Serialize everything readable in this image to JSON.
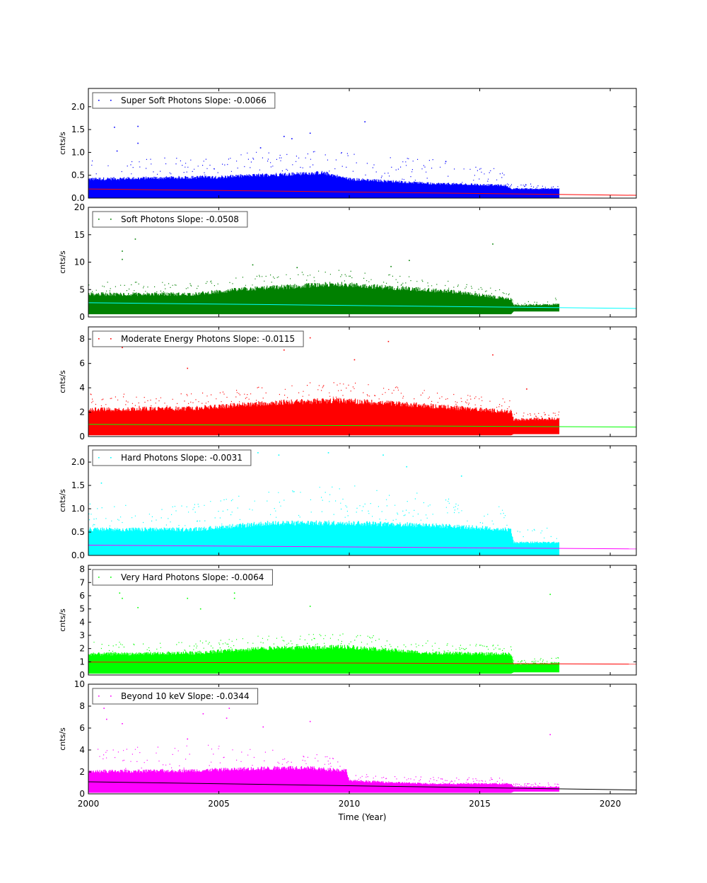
{
  "figure": {
    "xlabel": "Time (Year)",
    "x_ticks": [
      "2000",
      "2005",
      "2010",
      "2015",
      "2020"
    ]
  },
  "chart_data": [
    {
      "type": "scatter",
      "legend": "Super Soft Photons Slope: -0.0066",
      "ylabel": "cnts/s",
      "xlim": [
        2000,
        2021
      ],
      "ylim": [
        0,
        2.4
      ],
      "y_ticks": [
        "0.0",
        "0.5",
        "1.0",
        "1.5",
        "2.0"
      ],
      "y_tick_values": [
        0,
        0.5,
        1.0,
        1.5,
        2.0
      ],
      "legend_placement": "top-left",
      "grid": false,
      "colors": {
        "points": "#0000ff",
        "fit": "#ff0000"
      },
      "fit_line": {
        "x": [
          2000,
          2021
        ],
        "y": [
          0.2,
          0.061
        ],
        "slope": -0.0066
      },
      "data_extent": {
        "x_start": 2000,
        "x_end": 2018.05
      },
      "band": [
        {
          "x": 2000,
          "low": 0.0,
          "high": 0.45,
          "spike": 0.9
        },
        {
          "x": 2005,
          "low": 0.0,
          "high": 0.5,
          "spike": 0.85
        },
        {
          "x": 2007,
          "low": 0.0,
          "high": 0.55,
          "spike": 1.1
        },
        {
          "x": 2009,
          "low": 0.0,
          "high": 0.6,
          "spike": 1.05
        },
        {
          "x": 2010,
          "low": 0.0,
          "high": 0.45,
          "spike": 1.0
        },
        {
          "x": 2013,
          "low": 0.0,
          "high": 0.35,
          "spike": 0.85
        },
        {
          "x": 2016,
          "low": 0.0,
          "high": 0.3,
          "spike": 0.6
        },
        {
          "x": 2016.2,
          "low": 0.0,
          "high": 0.22,
          "spike": 0.3
        },
        {
          "x": 2018.05,
          "low": 0.0,
          "high": 0.22,
          "spike": 0.3
        }
      ],
      "outliers": [
        {
          "x": 2001.0,
          "y": 1.55
        },
        {
          "x": 2001.9,
          "y": 1.57
        },
        {
          "x": 2001.9,
          "y": 1.2
        },
        {
          "x": 2007.5,
          "y": 1.35
        },
        {
          "x": 2007.8,
          "y": 1.3
        },
        {
          "x": 2008.5,
          "y": 1.42
        },
        {
          "x": 2010.6,
          "y": 1.67
        },
        {
          "x": 2001.1,
          "y": 1.03
        },
        {
          "x": 2006.6,
          "y": 1.1
        },
        {
          "x": 2013.7,
          "y": 0.8
        }
      ]
    },
    {
      "type": "scatter",
      "legend": "Soft Photons Slope: -0.0508",
      "ylabel": "cnts/s",
      "xlim": [
        2000,
        2021
      ],
      "ylim": [
        0,
        20
      ],
      "y_ticks": [
        "0",
        "5",
        "10",
        "15",
        "20"
      ],
      "y_tick_values": [
        0,
        5,
        10,
        15,
        20
      ],
      "legend_placement": "top-left",
      "grid": false,
      "colors": {
        "points": "#008000",
        "fit": "#00ffff"
      },
      "fit_line": {
        "x": [
          2000,
          2021
        ],
        "y": [
          2.6,
          1.55
        ],
        "slope": -0.0508
      },
      "data_extent": {
        "x_start": 2000,
        "x_end": 2018.05
      },
      "band": [
        {
          "x": 2000,
          "low": 0.5,
          "high": 4.5,
          "spike": 7
        },
        {
          "x": 2004,
          "low": 0.5,
          "high": 4.5,
          "spike": 6
        },
        {
          "x": 2006,
          "low": 0.5,
          "high": 5.5,
          "spike": 7.5
        },
        {
          "x": 2009.5,
          "low": 0.5,
          "high": 6.5,
          "spike": 8.5
        },
        {
          "x": 2011,
          "low": 0.5,
          "high": 6.0,
          "spike": 8
        },
        {
          "x": 2014,
          "low": 0.5,
          "high": 5.0,
          "spike": 6.5
        },
        {
          "x": 2016.2,
          "low": 0.5,
          "high": 3.5,
          "spike": 4.5
        },
        {
          "x": 2016.3,
          "low": 1.0,
          "high": 2.3,
          "spike": 2.8
        },
        {
          "x": 2018.05,
          "low": 1.0,
          "high": 2.5,
          "spike": 3.5
        }
      ],
      "outliers": [
        {
          "x": 2001.3,
          "y": 12
        },
        {
          "x": 2001.8,
          "y": 14.2
        },
        {
          "x": 2015.5,
          "y": 13.3
        },
        {
          "x": 2001.3,
          "y": 10.5
        },
        {
          "x": 2006.3,
          "y": 9.5
        },
        {
          "x": 2008.0,
          "y": 9.0
        },
        {
          "x": 2011.6,
          "y": 9.2
        },
        {
          "x": 2012.3,
          "y": 10.3
        }
      ]
    },
    {
      "type": "scatter",
      "legend": "Moderate Energy Photons Slope: -0.0115",
      "ylabel": "cnts/s",
      "xlim": [
        2000,
        2021
      ],
      "ylim": [
        0,
        9
      ],
      "y_ticks": [
        "0",
        "2",
        "4",
        "6",
        "8"
      ],
      "y_tick_values": [
        0,
        2,
        4,
        6,
        8
      ],
      "legend_placement": "top-left",
      "grid": false,
      "colors": {
        "points": "#ff0000",
        "fit": "#00ff00"
      },
      "fit_line": {
        "x": [
          2000,
          2021
        ],
        "y": [
          1.0,
          0.78
        ],
        "slope": -0.0115
      },
      "data_extent": {
        "x_start": 2000,
        "x_end": 2018.05
      },
      "band": [
        {
          "x": 2000,
          "low": 0.1,
          "high": 2.4,
          "spike": 3.5
        },
        {
          "x": 2004,
          "low": 0.1,
          "high": 2.5,
          "spike": 3.5
        },
        {
          "x": 2007,
          "low": 0.1,
          "high": 3.0,
          "spike": 4.2
        },
        {
          "x": 2009.5,
          "low": 0.1,
          "high": 3.2,
          "spike": 4.5
        },
        {
          "x": 2012,
          "low": 0.1,
          "high": 2.9,
          "spike": 4.0
        },
        {
          "x": 2016.2,
          "low": 0.1,
          "high": 2.2,
          "spike": 3.0
        },
        {
          "x": 2016.3,
          "low": 0.2,
          "high": 1.5,
          "spike": 1.9
        },
        {
          "x": 2018.05,
          "low": 0.2,
          "high": 1.6,
          "spike": 2.0
        }
      ],
      "outliers": [
        {
          "x": 2001.3,
          "y": 7.3
        },
        {
          "x": 2001.9,
          "y": 7.5
        },
        {
          "x": 2007.5,
          "y": 7.1
        },
        {
          "x": 2008.5,
          "y": 8.1
        },
        {
          "x": 2011.5,
          "y": 7.8
        },
        {
          "x": 2015.5,
          "y": 6.7
        },
        {
          "x": 2003.8,
          "y": 5.6
        },
        {
          "x": 2010.2,
          "y": 6.3
        },
        {
          "x": 2016.8,
          "y": 3.9
        }
      ]
    },
    {
      "type": "scatter",
      "legend": "Hard Photons Slope: -0.0031",
      "ylabel": "cnts/s",
      "xlim": [
        2000,
        2021
      ],
      "ylim": [
        0,
        2.35
      ],
      "y_ticks": [
        "0.0",
        "0.5",
        "1.0",
        "1.5",
        "2.0"
      ],
      "y_tick_values": [
        0,
        0.5,
        1.0,
        1.5,
        2.0
      ],
      "legend_placement": "top-left",
      "grid": false,
      "colors": {
        "points": "#00ffff",
        "fit": "#ff00ff"
      },
      "fit_line": {
        "x": [
          2000,
          2021
        ],
        "y": [
          0.22,
          0.14
        ],
        "slope": -0.0031
      },
      "data_extent": {
        "x_start": 2000,
        "x_end": 2018.05
      },
      "band": [
        {
          "x": 2000,
          "low": 0.0,
          "high": 0.6,
          "spike": 1.1
        },
        {
          "x": 2004,
          "low": 0.0,
          "high": 0.6,
          "spike": 1.1
        },
        {
          "x": 2007,
          "low": 0.0,
          "high": 0.75,
          "spike": 1.4
        },
        {
          "x": 2010,
          "low": 0.0,
          "high": 0.75,
          "spike": 1.5
        },
        {
          "x": 2013,
          "low": 0.0,
          "high": 0.7,
          "spike": 1.3
        },
        {
          "x": 2016.2,
          "low": 0.0,
          "high": 0.6,
          "spike": 1.0
        },
        {
          "x": 2016.3,
          "low": 0.0,
          "high": 0.3,
          "spike": 0.55
        },
        {
          "x": 2018.05,
          "low": 0.0,
          "high": 0.3,
          "spike": 0.6
        }
      ],
      "outliers": [
        {
          "x": 2006.5,
          "y": 2.2
        },
        {
          "x": 2007.3,
          "y": 2.15
        },
        {
          "x": 2009.2,
          "y": 2.2
        },
        {
          "x": 2011.3,
          "y": 2.15
        },
        {
          "x": 2000.5,
          "y": 1.55
        },
        {
          "x": 2002.2,
          "y": 2.05
        },
        {
          "x": 2012.2,
          "y": 1.9
        },
        {
          "x": 2014.3,
          "y": 1.7
        }
      ]
    },
    {
      "type": "scatter",
      "legend": "Very Hard Photons Slope: -0.0064",
      "ylabel": "cnts/s",
      "xlim": [
        2000,
        2021
      ],
      "ylim": [
        0,
        8.3
      ],
      "y_ticks": [
        "0",
        "1",
        "2",
        "3",
        "4",
        "5",
        "6",
        "7",
        "8"
      ],
      "y_tick_values": [
        0,
        1,
        2,
        3,
        4,
        5,
        6,
        7,
        8
      ],
      "legend_placement": "top-left",
      "grid": false,
      "colors": {
        "points": "#00ff00",
        "fit": "#ff0000"
      },
      "fit_line": {
        "x": [
          2000,
          2021
        ],
        "y": [
          0.98,
          0.82
        ],
        "slope": -0.0064
      },
      "data_extent": {
        "x_start": 2000,
        "x_end": 2018.05
      },
      "band": [
        {
          "x": 2000,
          "low": 0.1,
          "high": 1.7,
          "spike": 2.5
        },
        {
          "x": 2004,
          "low": 0.1,
          "high": 1.8,
          "spike": 2.5
        },
        {
          "x": 2007,
          "low": 0.1,
          "high": 2.2,
          "spike": 3.0
        },
        {
          "x": 2010,
          "low": 0.1,
          "high": 2.3,
          "spike": 3.1
        },
        {
          "x": 2013,
          "low": 0.1,
          "high": 1.8,
          "spike": 2.6
        },
        {
          "x": 2016.2,
          "low": 0.1,
          "high": 1.7,
          "spike": 2.2
        },
        {
          "x": 2016.3,
          "low": 0.2,
          "high": 0.9,
          "spike": 1.2
        },
        {
          "x": 2018.05,
          "low": 0.2,
          "high": 1.0,
          "spike": 1.3
        }
      ],
      "outliers": [
        {
          "x": 2001.2,
          "y": 6.2
        },
        {
          "x": 2001.3,
          "y": 5.8
        },
        {
          "x": 2005.6,
          "y": 6.2
        },
        {
          "x": 2005.6,
          "y": 5.8
        },
        {
          "x": 2003.8,
          "y": 5.8
        },
        {
          "x": 2004.3,
          "y": 5.0
        },
        {
          "x": 2008.5,
          "y": 5.2
        },
        {
          "x": 2017.7,
          "y": 6.1
        },
        {
          "x": 2001.9,
          "y": 5.1
        }
      ]
    },
    {
      "type": "scatter",
      "legend": "Beyond 10 keV Slope: -0.0344",
      "ylabel": "cnts/s",
      "xlim": [
        2000,
        2021
      ],
      "ylim": [
        0,
        10
      ],
      "y_ticks": [
        "0",
        "2",
        "4",
        "6",
        "8",
        "10"
      ],
      "y_tick_values": [
        0,
        2,
        4,
        6,
        8,
        10
      ],
      "legend_placement": "top-left",
      "grid": false,
      "colors": {
        "points": "#ff00ff",
        "fit": "#000000"
      },
      "fit_line": {
        "x": [
          2000,
          2021
        ],
        "y": [
          1.1,
          0.35
        ],
        "slope": -0.0344
      },
      "data_extent": {
        "x_start": 2000,
        "x_end": 2018.05
      },
      "band": [
        {
          "x": 2000,
          "low": 0.1,
          "high": 2.2,
          "spike": 4.0
        },
        {
          "x": 2004,
          "low": 0.1,
          "high": 2.3,
          "spike": 4.5
        },
        {
          "x": 2008,
          "low": 0.1,
          "high": 2.6,
          "spike": 3.8
        },
        {
          "x": 2009.9,
          "low": 0.1,
          "high": 2.3,
          "spike": 3.2
        },
        {
          "x": 2010,
          "low": 0.1,
          "high": 1.3,
          "spike": 1.8
        },
        {
          "x": 2013,
          "low": 0.1,
          "high": 1.0,
          "spike": 1.5
        },
        {
          "x": 2016.2,
          "low": 0.1,
          "high": 1.0,
          "spike": 1.4
        },
        {
          "x": 2016.3,
          "low": 0.2,
          "high": 0.7,
          "spike": 0.9
        },
        {
          "x": 2018.05,
          "low": 0.2,
          "high": 0.7,
          "spike": 1.0
        }
      ],
      "outliers": [
        {
          "x": 2000.6,
          "y": 7.8
        },
        {
          "x": 2000.7,
          "y": 6.8
        },
        {
          "x": 2004.5,
          "y": 8.3
        },
        {
          "x": 2005.4,
          "y": 7.8
        },
        {
          "x": 2001.3,
          "y": 6.4
        },
        {
          "x": 2004.4,
          "y": 7.3
        },
        {
          "x": 2005.3,
          "y": 6.9
        },
        {
          "x": 2008.5,
          "y": 6.6
        },
        {
          "x": 2017.7,
          "y": 5.4
        },
        {
          "x": 2003.8,
          "y": 5.0
        },
        {
          "x": 2006.7,
          "y": 6.1
        }
      ]
    }
  ]
}
